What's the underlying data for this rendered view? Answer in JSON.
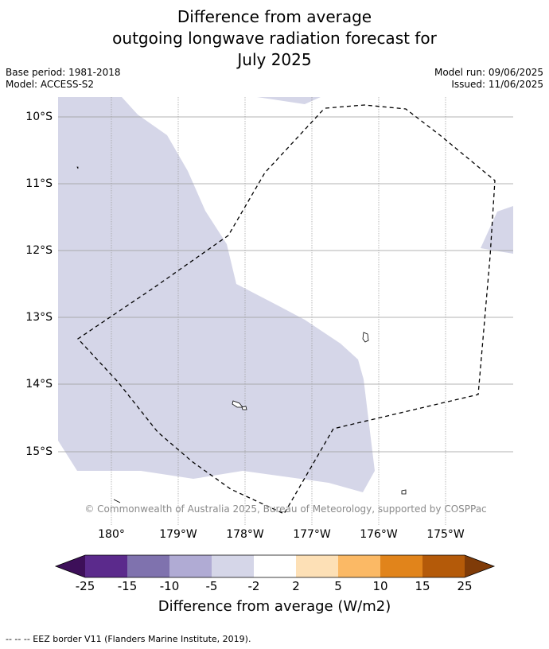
{
  "title": {
    "line1": "Difference from average",
    "line2": "outgoing longwave radiation forecast for",
    "line3": "July 2025"
  },
  "meta": {
    "base_period": "Base period: 1981-2018",
    "model": "Model: ACCESS-S2",
    "model_run": "Model run: 09/06/2025",
    "issued": "Issued: 11/06/2025"
  },
  "map": {
    "lat_labels": [
      "10°S",
      "11°S",
      "12°S",
      "13°S",
      "14°S",
      "15°S"
    ],
    "lon_labels": [
      "180°",
      "179°W",
      "178°W",
      "177°W",
      "176°W",
      "175°W"
    ],
    "copyright": "© Commonwealth of Australia 2025, Bureau of Meteorology, supported by COSPPac",
    "anomaly_fill_color": "#d5d6e8",
    "grid_color": "#9a9a9a",
    "eez_line_style": "dashed"
  },
  "colorbar": {
    "ticks": [
      "-25",
      "-15",
      "-10",
      "-5",
      "-2",
      "2",
      "5",
      "10",
      "15",
      "25"
    ],
    "colors": [
      "#3d0f59",
      "#5b2a8c",
      "#7f72ae",
      "#b0abd4",
      "#d5d6e8",
      "#ffffff",
      "#fde0b6",
      "#fbb965",
      "#e1841b",
      "#b45a09",
      "#7f3b08"
    ],
    "label": "Difference from average (W/m2)"
  },
  "footnote": "--  --  -- EEZ border V11 (Flanders Marine Institute, 2019)."
}
